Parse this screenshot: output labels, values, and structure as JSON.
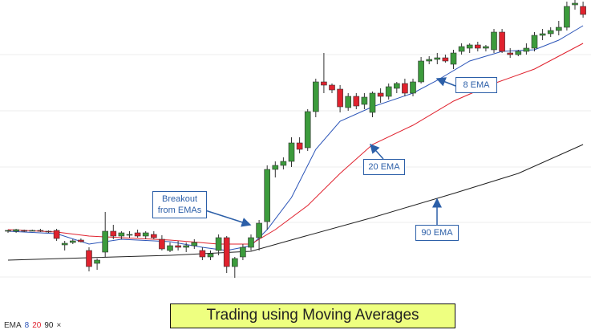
{
  "chart_data": {
    "type": "candlestick",
    "title": "Trading using Moving Averages",
    "ylim": [
      41,
      416
    ],
    "yticks": [
      71,
      139,
      208,
      278,
      348
    ],
    "grid": true,
    "up_color": "#3c9b3c",
    "down_color": "#e0222e",
    "open": [
      128,
      128,
      129,
      129,
      129,
      128,
      129,
      111,
      114,
      117,
      104,
      88,
      102,
      128,
      122,
      123,
      126,
      122,
      124,
      118,
      104,
      110,
      108,
      110,
      104,
      96,
      104,
      120,
      84,
      96,
      108,
      120,
      140,
      205,
      210,
      215,
      238,
      232,
      277,
      314,
      310,
      305,
      282,
      296,
      286,
      276,
      300,
      296,
      306,
      312,
      300,
      314,
      340,
      342,
      344,
      336,
      352,
      356,
      360,
      356,
      354,
      376,
      350,
      348,
      352,
      356,
      372,
      374,
      378,
      382,
      410,
      408
    ],
    "high": [
      130,
      131,
      130,
      130,
      131,
      129,
      131,
      116,
      118,
      119,
      108,
      94,
      152,
      136,
      128,
      128,
      130,
      128,
      128,
      123,
      114,
      116,
      114,
      118,
      108,
      104,
      124,
      122,
      96,
      112,
      124,
      142,
      210,
      215,
      220,
      245,
      245,
      280,
      318,
      350,
      312,
      310,
      300,
      300,
      300,
      302,
      306,
      312,
      314,
      318,
      318,
      345,
      346,
      350,
      348,
      354,
      362,
      362,
      364,
      360,
      380,
      380,
      356,
      354,
      362,
      376,
      380,
      382,
      390,
      414,
      416,
      414
    ],
    "low": [
      126,
      126,
      127,
      128,
      127,
      126,
      116,
      104,
      112,
      114,
      78,
      80,
      96,
      118,
      118,
      120,
      120,
      118,
      118,
      104,
      102,
      104,
      102,
      106,
      92,
      92,
      98,
      76,
      70,
      92,
      104,
      104,
      130,
      195,
      205,
      208,
      225,
      228,
      270,
      300,
      300,
      276,
      278,
      280,
      280,
      270,
      288,
      292,
      300,
      296,
      296,
      312,
      336,
      336,
      338,
      330,
      348,
      350,
      352,
      352,
      350,
      350,
      344,
      346,
      348,
      352,
      366,
      370,
      372,
      378,
      404,
      394
    ],
    "close": [
      129,
      130,
      128,
      129,
      128,
      127,
      119,
      113,
      116,
      115,
      84,
      92,
      128,
      122,
      126,
      124,
      122,
      126,
      120,
      106,
      110,
      108,
      110,
      114,
      96,
      100,
      120,
      84,
      94,
      108,
      120,
      138,
      205,
      210,
      215,
      238,
      230,
      277,
      314,
      310,
      304,
      283,
      296,
      284,
      295,
      300,
      296,
      308,
      312,
      300,
      314,
      340,
      342,
      344,
      340,
      350,
      358,
      360,
      356,
      358,
      376,
      352,
      348,
      352,
      356,
      372,
      374,
      378,
      382,
      408,
      412,
      398
    ],
    "legend_label": "EMA",
    "series": [
      {
        "name": "8",
        "color": "#2c55b8",
        "x": [
          0,
          6,
          10,
          14,
          20,
          24,
          27,
          30,
          32,
          35,
          38,
          41,
          45,
          50,
          53,
          57,
          61,
          65,
          68,
          71
        ],
        "values": [
          128,
          125,
          112,
          118,
          115,
          108,
          104,
          110,
          130,
          170,
          230,
          265,
          283,
          300,
          316,
          340,
          352,
          354,
          366,
          384
        ]
      },
      {
        "name": "20",
        "color": "#e0222e",
        "x": [
          0,
          6,
          10,
          14,
          20,
          26,
          30,
          33,
          37,
          41,
          45,
          50,
          55,
          60,
          65,
          71
        ],
        "values": [
          130,
          127,
          122,
          120,
          117,
          112,
          112,
          130,
          160,
          200,
          236,
          260,
          290,
          312,
          330,
          362
        ]
      },
      {
        "name": "90",
        "color": "#222222",
        "x": [
          0,
          10,
          20,
          30,
          36,
          45,
          55,
          63,
          71
        ],
        "values": [
          92,
          95,
          98,
          103,
          120,
          145,
          175,
          200,
          236
        ]
      }
    ],
    "annotations": [
      {
        "text": "Breakout from EMAs"
      },
      {
        "text": "8 EMA"
      },
      {
        "text": "20 EMA"
      },
      {
        "text": "90 EMA"
      }
    ]
  }
}
